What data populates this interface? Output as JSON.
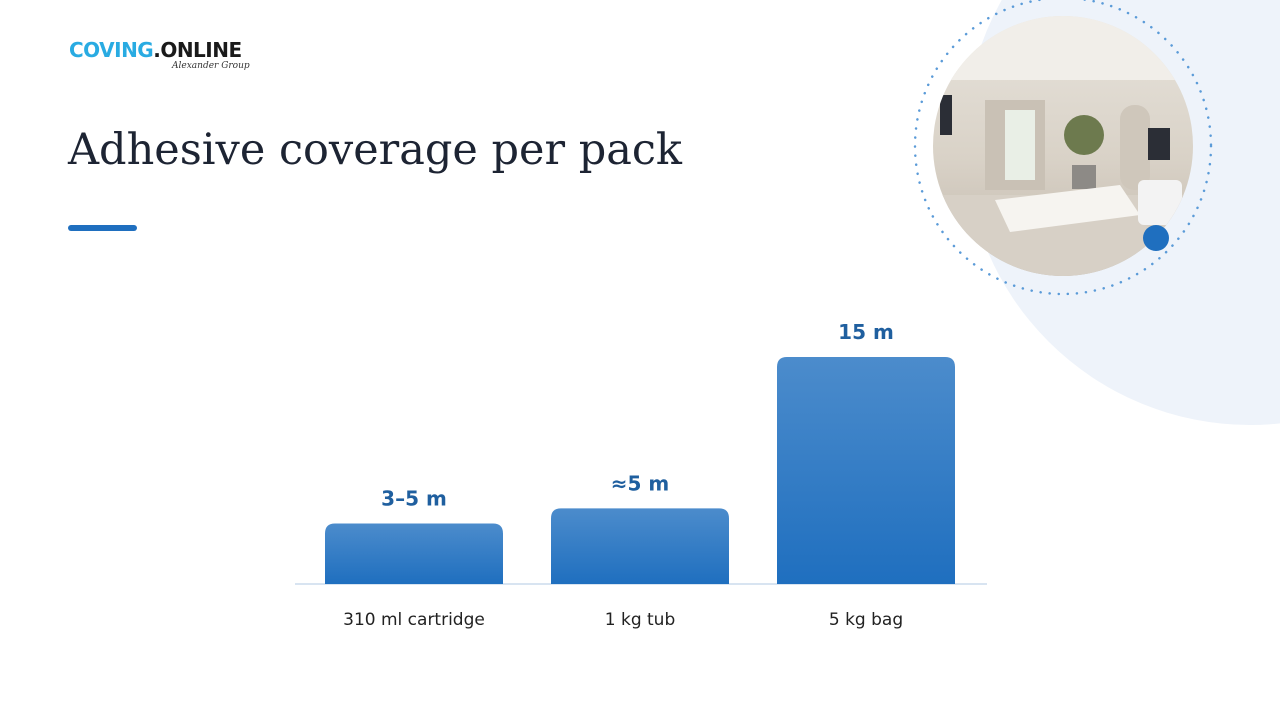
{
  "logo": {
    "brand_a": "COVING",
    "brand_b": ".ONLINE",
    "tagline": "Alexander Group"
  },
  "chart_data": {
    "type": "bar",
    "title": "Adhesive coverage per pack",
    "categories": [
      "310 ml cartridge",
      "1 kg tub",
      "5 kg bag"
    ],
    "values": [
      4,
      5,
      15
    ],
    "value_labels": [
      "3–5 m",
      "≈5 m",
      "15 m"
    ],
    "color": "#1f6fbf"
  }
}
